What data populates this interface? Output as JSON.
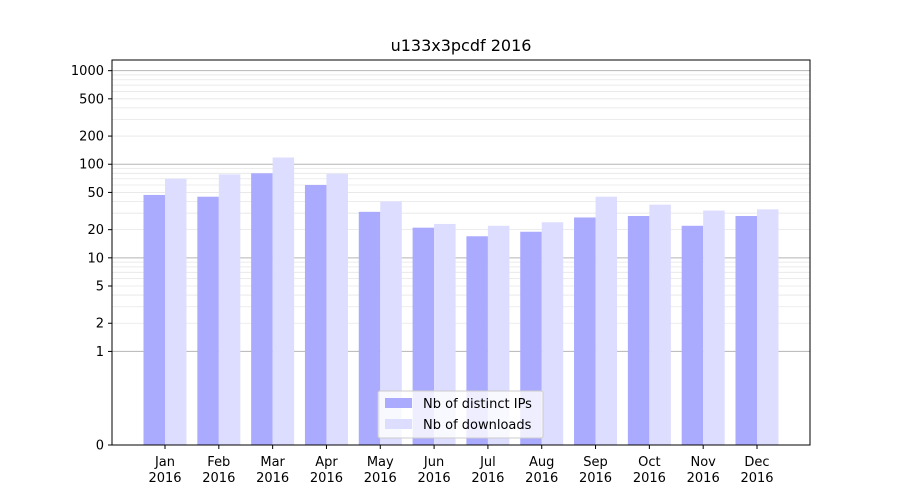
{
  "chart_data": {
    "type": "bar",
    "title": "u133x3pcdf 2016",
    "xlabel": "",
    "ylabel": "",
    "y_scale": "symlog",
    "ylim": [
      0,
      1300
    ],
    "y_ticks": [
      0,
      1,
      2,
      5,
      10,
      20,
      50,
      100,
      200,
      500,
      1000
    ],
    "grid": true,
    "legend_position": "lower-center",
    "categories": [
      [
        "Jan",
        "2016"
      ],
      [
        "Feb",
        "2016"
      ],
      [
        "Mar",
        "2016"
      ],
      [
        "Apr",
        "2016"
      ],
      [
        "May",
        "2016"
      ],
      [
        "Jun",
        "2016"
      ],
      [
        "Jul",
        "2016"
      ],
      [
        "Aug",
        "2016"
      ],
      [
        "Sep",
        "2016"
      ],
      [
        "Oct",
        "2016"
      ],
      [
        "Nov",
        "2016"
      ],
      [
        "Dec",
        "2016"
      ]
    ],
    "series": [
      {
        "name": "Nb of distinct IPs",
        "color": "#aaaaff",
        "values": [
          47,
          45,
          80,
          60,
          31,
          21,
          17,
          19,
          27,
          28,
          22,
          28
        ]
      },
      {
        "name": "Nb of downloads",
        "color": "#ddddff",
        "values": [
          70,
          78,
          118,
          79,
          40,
          23,
          22,
          24,
          45,
          37,
          32,
          33
        ]
      }
    ]
  }
}
